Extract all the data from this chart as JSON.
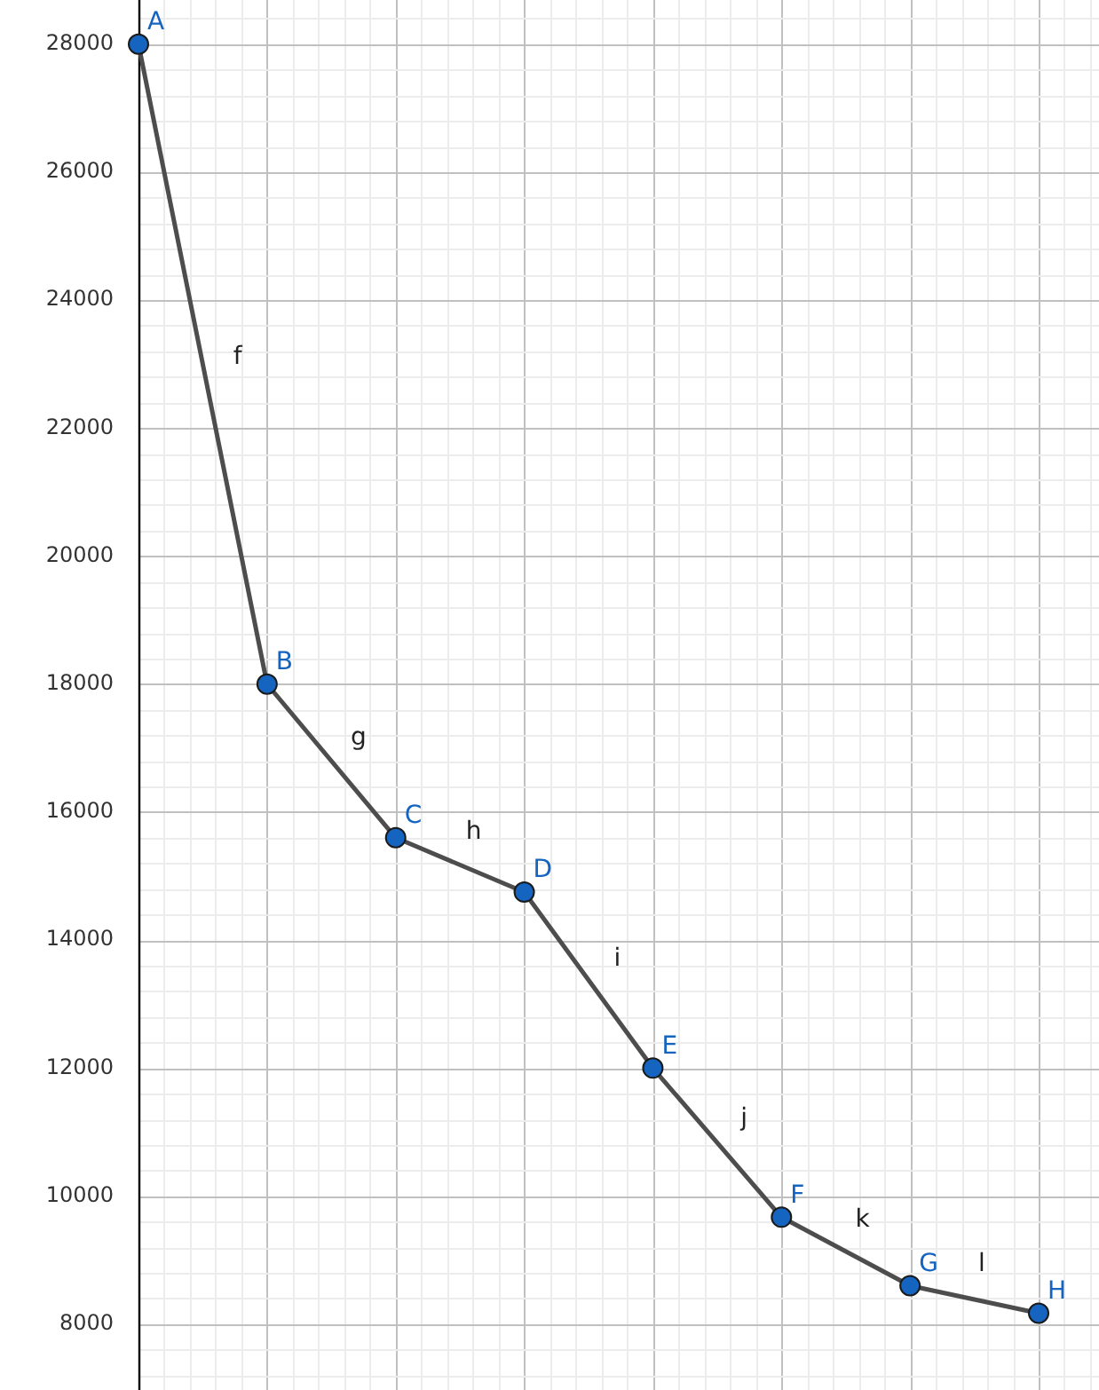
{
  "chart_data": {
    "type": "line",
    "categories": [
      null,
      null,
      null,
      null,
      null,
      null,
      null,
      null
    ],
    "series": [
      {
        "color": "#4d4d4d",
        "colors": [
          "#1565c0",
          "#1565c0",
          "#1565c0",
          "#1565c0",
          "#1565c0",
          "#1565c0",
          "#1565c0",
          "#1565c0"
        ],
        "values": [
          28000,
          18000,
          15600,
          14750,
          12000,
          9670,
          8600,
          8170
        ],
        "marker": "circle",
        "line_style": "solid"
      }
    ],
    "ylim": [
      6970,
      28690
    ],
    "yticks": [
      8000,
      10000,
      12000,
      14000,
      16000,
      18000,
      20000,
      22000,
      24000,
      26000,
      28000
    ],
    "tick_labels": "y",
    "grid": true,
    "legend": false,
    "annotations": [
      {
        "text": "A",
        "y": 28000
      },
      {
        "text": "B",
        "y": 18000
      },
      {
        "text": "C",
        "y": 15600
      },
      {
        "text": "D",
        "y": 14750
      },
      {
        "text": "E",
        "y": 12000
      },
      {
        "text": "F",
        "y": 9670
      },
      {
        "text": "G",
        "y": 8600
      },
      {
        "text": "H",
        "y": 8170
      },
      "f",
      "g",
      "h",
      "i",
      "j",
      "k",
      "l"
    ]
  }
}
